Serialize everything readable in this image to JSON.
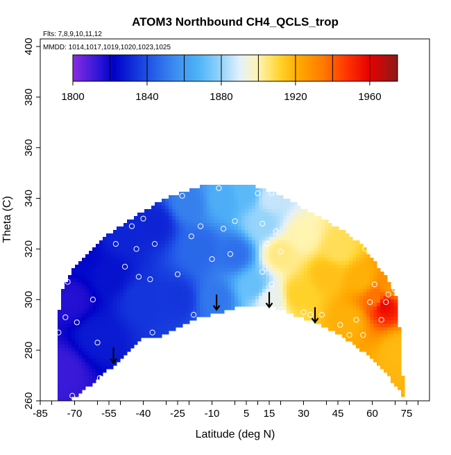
{
  "chart_data": {
    "type": "heatmap",
    "title": "ATOM3 Northbound CH4_QCLS_trop",
    "flights_note": "Flts: 7,8,9,10,11,12",
    "dates_note": "MMDD: 1014,1017,1019,1020,1023,1025",
    "xlabel": "Latitude (deg N)",
    "ylabel": "Theta (C)",
    "xlim": [
      -85,
      85
    ],
    "ylim": [
      260,
      403
    ],
    "x_ticks": [
      "-85",
      "-70",
      "-55",
      "-40",
      "-25",
      "-10",
      "5",
      "15",
      "30",
      "45",
      "60",
      "75"
    ],
    "x_tick_values": [
      -85,
      -70,
      -55,
      -40,
      -25,
      -10,
      5,
      15,
      30,
      45,
      60,
      75
    ],
    "y_ticks": [
      "260",
      "280",
      "300",
      "320",
      "340",
      "360",
      "380",
      "400"
    ],
    "y_tick_values": [
      260,
      280,
      300,
      320,
      340,
      360,
      380,
      400
    ],
    "colorbar": {
      "min": 1800,
      "max": 1975,
      "ticks": [
        "1800",
        "1840",
        "1880",
        "1920",
        "1960"
      ],
      "tick_values": [
        1800,
        1840,
        1880,
        1920,
        1960
      ],
      "stops": [
        {
          "v": 1800,
          "color": "#8a2be2"
        },
        {
          "v": 1812,
          "color": "#3a1ad8"
        },
        {
          "v": 1822,
          "color": "#0000c8"
        },
        {
          "v": 1840,
          "color": "#1e50e6"
        },
        {
          "v": 1855,
          "color": "#3c8cf0"
        },
        {
          "v": 1868,
          "color": "#50b4f8"
        },
        {
          "v": 1880,
          "color": "#96d4fa"
        },
        {
          "v": 1890,
          "color": "#e4f0fc"
        },
        {
          "v": 1900,
          "color": "#fff4b0"
        },
        {
          "v": 1912,
          "color": "#ffd22a"
        },
        {
          "v": 1922,
          "color": "#ffa800"
        },
        {
          "v": 1935,
          "color": "#ff7a00"
        },
        {
          "v": 1948,
          "color": "#ff3200"
        },
        {
          "v": 1960,
          "color": "#e60000"
        },
        {
          "v": 1975,
          "color": "#8c1a1a"
        }
      ],
      "divisions": [
        1820,
        1840,
        1860,
        1880,
        1900,
        1920,
        1940,
        1960
      ]
    },
    "field_anchors": [
      {
        "lat": -75,
        "theta": 272,
        "ch4": 1812
      },
      {
        "lat": -72,
        "theta": 300,
        "ch4": 1816
      },
      {
        "lat": -66,
        "theta": 316,
        "ch4": 1824
      },
      {
        "lat": -60,
        "theta": 285,
        "ch4": 1828
      },
      {
        "lat": -55,
        "theta": 310,
        "ch4": 1826
      },
      {
        "lat": -48,
        "theta": 325,
        "ch4": 1830
      },
      {
        "lat": -40,
        "theta": 300,
        "ch4": 1834
      },
      {
        "lat": -35,
        "theta": 330,
        "ch4": 1830
      },
      {
        "lat": -25,
        "theta": 300,
        "ch4": 1834
      },
      {
        "lat": -20,
        "theta": 338,
        "ch4": 1852
      },
      {
        "lat": -15,
        "theta": 320,
        "ch4": 1846
      },
      {
        "lat": -8,
        "theta": 300,
        "ch4": 1850
      },
      {
        "lat": -5,
        "theta": 340,
        "ch4": 1866
      },
      {
        "lat": 0,
        "theta": 318,
        "ch4": 1848
      },
      {
        "lat": 5,
        "theta": 342,
        "ch4": 1870
      },
      {
        "lat": 8,
        "theta": 305,
        "ch4": 1872
      },
      {
        "lat": 12,
        "theta": 330,
        "ch4": 1880
      },
      {
        "lat": 16,
        "theta": 340,
        "ch4": 1886
      },
      {
        "lat": 15,
        "theta": 300,
        "ch4": 1892
      },
      {
        "lat": 20,
        "theta": 318,
        "ch4": 1904
      },
      {
        "lat": 28,
        "theta": 302,
        "ch4": 1912
      },
      {
        "lat": 30,
        "theta": 325,
        "ch4": 1900
      },
      {
        "lat": 40,
        "theta": 310,
        "ch4": 1916
      },
      {
        "lat": 45,
        "theta": 320,
        "ch4": 1908
      },
      {
        "lat": 50,
        "theta": 292,
        "ch4": 1920
      },
      {
        "lat": 55,
        "theta": 308,
        "ch4": 1920
      },
      {
        "lat": 62,
        "theta": 300,
        "ch4": 1936
      },
      {
        "lat": 65,
        "theta": 298,
        "ch4": 1958
      },
      {
        "lat": 68,
        "theta": 305,
        "ch4": 1928
      },
      {
        "lat": 72,
        "theta": 280,
        "ch4": 1918
      }
    ],
    "domain_top": [
      {
        "lat": -75,
        "theta": 305
      },
      {
        "lat": -70,
        "theta": 313
      },
      {
        "lat": -64,
        "theta": 318
      },
      {
        "lat": -58,
        "theta": 324
      },
      {
        "lat": -50,
        "theta": 329
      },
      {
        "lat": -40,
        "theta": 335
      },
      {
        "lat": -28,
        "theta": 341
      },
      {
        "lat": -18,
        "theta": 344
      },
      {
        "lat": -8,
        "theta": 346
      },
      {
        "lat": 0,
        "theta": 346
      },
      {
        "lat": 8,
        "theta": 345
      },
      {
        "lat": 18,
        "theta": 342
      },
      {
        "lat": 28,
        "theta": 337
      },
      {
        "lat": 38,
        "theta": 332
      },
      {
        "lat": 48,
        "theta": 327
      },
      {
        "lat": 55,
        "theta": 322
      },
      {
        "lat": 60,
        "theta": 316
      },
      {
        "lat": 66,
        "theta": 309
      },
      {
        "lat": 71,
        "theta": 300
      },
      {
        "lat": 74,
        "theta": 262
      }
    ],
    "domain_bottom": [
      {
        "lat": 74,
        "theta": 261
      },
      {
        "lat": 66,
        "theta": 271
      },
      {
        "lat": 58,
        "theta": 278
      },
      {
        "lat": 48,
        "theta": 285
      },
      {
        "lat": 38,
        "theta": 290
      },
      {
        "lat": 26,
        "theta": 294
      },
      {
        "lat": 15,
        "theta": 298
      },
      {
        "lat": 5,
        "theta": 298
      },
      {
        "lat": -5,
        "theta": 295
      },
      {
        "lat": -15,
        "theta": 293
      },
      {
        "lat": -25,
        "theta": 289
      },
      {
        "lat": -33,
        "theta": 285
      },
      {
        "lat": -40,
        "theta": 285
      },
      {
        "lat": -48,
        "theta": 278
      },
      {
        "lat": -58,
        "theta": 270
      },
      {
        "lat": -66,
        "theta": 264
      },
      {
        "lat": -73,
        "theta": 260
      },
      {
        "lat": -77,
        "theta": 260
      },
      {
        "lat": -78,
        "theta": 286
      },
      {
        "lat": -76,
        "theta": 300
      }
    ],
    "observation_points": [
      {
        "lat": -77,
        "theta": 287
      },
      {
        "lat": -74,
        "theta": 293
      },
      {
        "lat": -73,
        "theta": 307
      },
      {
        "lat": -71,
        "theta": 262
      },
      {
        "lat": -69,
        "theta": 291
      },
      {
        "lat": -62,
        "theta": 300
      },
      {
        "lat": -60,
        "theta": 283
      },
      {
        "lat": -59,
        "theta": 269
      },
      {
        "lat": -52,
        "theta": 322
      },
      {
        "lat": -48,
        "theta": 313
      },
      {
        "lat": -45,
        "theta": 329
      },
      {
        "lat": -43,
        "theta": 320
      },
      {
        "lat": -42,
        "theta": 309
      },
      {
        "lat": -40,
        "theta": 332
      },
      {
        "lat": -37,
        "theta": 308
      },
      {
        "lat": -36,
        "theta": 287
      },
      {
        "lat": -35,
        "theta": 322
      },
      {
        "lat": -25,
        "theta": 310
      },
      {
        "lat": -23,
        "theta": 341
      },
      {
        "lat": -19,
        "theta": 325
      },
      {
        "lat": -18,
        "theta": 294
      },
      {
        "lat": -15,
        "theta": 329
      },
      {
        "lat": -10,
        "theta": 316
      },
      {
        "lat": -7,
        "theta": 344
      },
      {
        "lat": -5,
        "theta": 328
      },
      {
        "lat": -2,
        "theta": 318
      },
      {
        "lat": 0,
        "theta": 331
      },
      {
        "lat": 10,
        "theta": 342
      },
      {
        "lat": 12,
        "theta": 330
      },
      {
        "lat": 14,
        "theta": 322
      },
      {
        "lat": 16,
        "theta": 342
      },
      {
        "lat": 18,
        "theta": 327
      },
      {
        "lat": 20,
        "theta": 319
      },
      {
        "lat": 12,
        "theta": 311
      },
      {
        "lat": 16,
        "theta": 306
      },
      {
        "lat": 20,
        "theta": 296
      },
      {
        "lat": 30,
        "theta": 295
      },
      {
        "lat": 33,
        "theta": 294
      },
      {
        "lat": 38,
        "theta": 294
      },
      {
        "lat": 46,
        "theta": 290
      },
      {
        "lat": 50,
        "theta": 286
      },
      {
        "lat": 53,
        "theta": 292
      },
      {
        "lat": 56,
        "theta": 286
      },
      {
        "lat": 57,
        "theta": 320
      },
      {
        "lat": 59,
        "theta": 299
      },
      {
        "lat": 60,
        "theta": 322
      },
      {
        "lat": 61,
        "theta": 306
      },
      {
        "lat": 64,
        "theta": 292
      },
      {
        "lat": 66,
        "theta": 299
      },
      {
        "lat": 67,
        "theta": 302
      },
      {
        "lat": 70,
        "theta": 304
      }
    ],
    "arrows": [
      {
        "lat": -53,
        "theta_top": 281,
        "theta_tip": 275
      },
      {
        "lat": -8,
        "theta_top": 302,
        "theta_tip": 296
      },
      {
        "lat": 15,
        "theta_top": 303,
        "theta_tip": 297
      },
      {
        "lat": 35,
        "theta_top": 297,
        "theta_tip": 291
      }
    ]
  }
}
